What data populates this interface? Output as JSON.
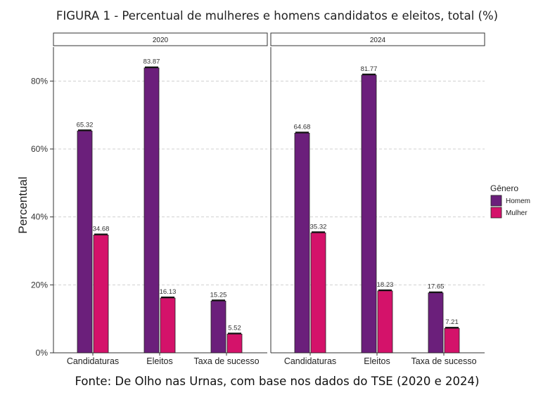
{
  "figure_title": "FIGURA 1 - Percentual de mulheres e homens candidatos e eleitos, total (%)",
  "caption": "Fonte: De Olho nas Urnas, com base nos dados do TSE (2020 e 2024)",
  "colors": {
    "homem": "#6b1f7b",
    "mulher": "#d4126a",
    "grid": "#d0d0d0"
  },
  "chart_data": {
    "type": "bar",
    "ylabel": "Percentual",
    "ylim": [
      0,
      90
    ],
    "yticks": [
      0,
      20,
      40,
      60,
      80
    ],
    "ytick_labels": [
      "0%",
      "20%",
      "40%",
      "60%",
      "80%"
    ],
    "categories": [
      "Candidaturas",
      "Eleitos",
      "Taxa de sucesso"
    ],
    "legend": {
      "title": "Gênero",
      "position": "right",
      "entries": [
        "Homem",
        "Mulher"
      ]
    },
    "panels": [
      {
        "label": "2020",
        "series": [
          {
            "name": "Homem",
            "values": [
              65.32,
              83.87,
              15.25
            ],
            "labels": [
              "65.32",
              "83.87",
              "15.25"
            ]
          },
          {
            "name": "Mulher",
            "values": [
              34.68,
              16.13,
              5.52
            ],
            "labels": [
              "34.68",
              "16.13",
              "5.52"
            ]
          }
        ]
      },
      {
        "label": "2024",
        "series": [
          {
            "name": "Homem",
            "values": [
              64.68,
              81.77,
              17.65
            ],
            "labels": [
              "64.68",
              "81.77",
              "17.65"
            ]
          },
          {
            "name": "Mulher",
            "values": [
              35.32,
              18.23,
              7.21
            ],
            "labels": [
              "35.32",
              "18.23",
              "7.21"
            ]
          }
        ]
      }
    ]
  }
}
